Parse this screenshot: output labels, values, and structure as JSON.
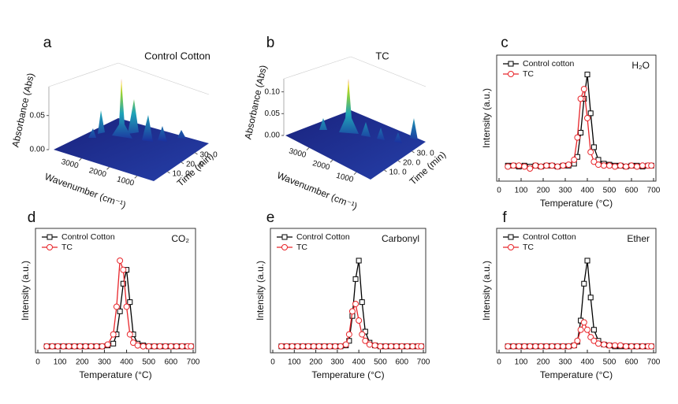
{
  "chart_data": [
    {
      "type": "surface3d",
      "panel": "a",
      "title": "Control Cotton",
      "xlabel": "Wavenumber (cm⁻¹)",
      "ylabel": "Time (min)",
      "zlabel": "Absorbance (Abs)",
      "xlim": [
        4000,
        400
      ],
      "xticks": [
        3000,
        2000,
        1000
      ],
      "ylim": [
        0,
        40
      ],
      "yticks": [
        {
          "value": 10,
          "label": "10. 0"
        },
        {
          "value": 20,
          "label": "20. 0"
        },
        {
          "value": 30,
          "label": "30. 0"
        }
      ],
      "zlim": [
        0,
        0.09
      ],
      "zticks": [
        {
          "value": 0,
          "label": "0.00"
        },
        0.05
      ]
    },
    {
      "type": "surface3d",
      "panel": "b",
      "title": "TC",
      "xlabel": "Wavenumber (cm⁻¹)",
      "ylabel": "Time (min)",
      "zlabel": "Absorbance (Abs)",
      "xlim": [
        4000,
        400
      ],
      "xticks": [
        3000,
        2000,
        1000
      ],
      "ylim": [
        0,
        40
      ],
      "yticks": [
        {
          "value": 10,
          "label": "10. 0"
        },
        {
          "value": 20,
          "label": "20. 0"
        },
        {
          "value": 30,
          "label": "30. 0"
        }
      ],
      "zlim": [
        0,
        0.13
      ],
      "zticks": [
        {
          "value": 0,
          "label": "0.00"
        },
        0.05,
        {
          "value": 0.1,
          "label": "0.10"
        }
      ]
    },
    {
      "type": "line",
      "panel": "c",
      "annotation": "H₂O",
      "xlabel": "Temperature (°C)",
      "ylabel": "Intensity (a.u.)",
      "xlim": [
        0,
        700
      ],
      "xticks": [
        0,
        100,
        200,
        300,
        400,
        500,
        600,
        700
      ],
      "ylim": [
        -0.1,
        1.2
      ],
      "x": [
        40,
        65,
        90,
        115,
        140,
        165,
        190,
        215,
        240,
        265,
        290,
        315,
        340,
        355,
        370,
        385,
        400,
        415,
        430,
        450,
        475,
        500,
        525,
        550,
        575,
        600,
        625,
        650,
        675,
        690
      ],
      "series": [
        {
          "name": "Control cotton",
          "color": "#000000",
          "marker": "square",
          "values": [
            0.06,
            0.06,
            0.05,
            0.06,
            0.05,
            0.06,
            0.05,
            0.06,
            0.06,
            0.05,
            0.06,
            0.06,
            0.08,
            0.15,
            0.4,
            0.75,
            1.0,
            0.6,
            0.25,
            0.12,
            0.08,
            0.07,
            0.06,
            0.06,
            0.05,
            0.06,
            0.06,
            0.05,
            0.06,
            0.06
          ]
        },
        {
          "name": "TC",
          "color": "#e8262b",
          "marker": "circle",
          "values": [
            0.05,
            0.06,
            0.06,
            0.05,
            0.03,
            0.06,
            0.05,
            0.06,
            0.06,
            0.05,
            0.06,
            0.07,
            0.12,
            0.35,
            0.75,
            0.85,
            0.55,
            0.2,
            0.1,
            0.07,
            0.06,
            0.06,
            0.05,
            0.06,
            0.05,
            0.06,
            0.05,
            0.06,
            0.06,
            0.06
          ]
        }
      ]
    },
    {
      "type": "line",
      "panel": "d",
      "annotation": "CO₂",
      "xlabel": "Temperature (°C)",
      "ylabel": "Intensity (a.u.)",
      "xlim": [
        0,
        700
      ],
      "xticks": [
        0,
        100,
        200,
        300,
        400,
        500,
        600,
        700
      ],
      "ylim": [
        -0.05,
        1.3
      ],
      "x": [
        40,
        65,
        90,
        115,
        140,
        165,
        190,
        215,
        240,
        265,
        290,
        315,
        340,
        355,
        370,
        385,
        400,
        415,
        430,
        450,
        475,
        500,
        525,
        550,
        575,
        600,
        625,
        650,
        675,
        690
      ],
      "series": [
        {
          "name": "Control Cotton",
          "color": "#000000",
          "marker": "square",
          "values": [
            0.02,
            0.02,
            0.02,
            0.02,
            0.02,
            0.02,
            0.02,
            0.02,
            0.02,
            0.02,
            0.02,
            0.03,
            0.05,
            0.15,
            0.4,
            0.7,
            0.85,
            0.5,
            0.15,
            0.05,
            0.03,
            0.02,
            0.02,
            0.02,
            0.02,
            0.02,
            0.02,
            0.02,
            0.02,
            0.02
          ]
        },
        {
          "name": "TC",
          "color": "#e8262b",
          "marker": "circle",
          "values": [
            0.02,
            0.02,
            0.02,
            0.02,
            0.02,
            0.02,
            0.02,
            0.02,
            0.02,
            0.02,
            0.02,
            0.04,
            0.15,
            0.45,
            0.95,
            0.85,
            0.45,
            0.15,
            0.06,
            0.03,
            0.02,
            0.02,
            0.02,
            0.02,
            0.02,
            0.02,
            0.02,
            0.02,
            0.02,
            0.02
          ]
        }
      ]
    },
    {
      "type": "line",
      "panel": "e",
      "annotation": "Carbonyl",
      "xlabel": "Temperature (°C)",
      "ylabel": "Intensity (a.u.)",
      "xlim": [
        0,
        700
      ],
      "xticks": [
        0,
        100,
        200,
        300,
        400,
        500,
        600,
        700
      ],
      "ylim": [
        -0.05,
        1.3
      ],
      "x": [
        40,
        65,
        90,
        115,
        140,
        165,
        190,
        215,
        240,
        265,
        290,
        315,
        340,
        355,
        370,
        385,
        400,
        415,
        430,
        450,
        475,
        500,
        525,
        550,
        575,
        600,
        625,
        650,
        675,
        690
      ],
      "series": [
        {
          "name": "Control Cotton",
          "color": "#000000",
          "marker": "square",
          "values": [
            0.02,
            0.02,
            0.02,
            0.02,
            0.02,
            0.02,
            0.02,
            0.02,
            0.02,
            0.02,
            0.02,
            0.02,
            0.03,
            0.08,
            0.35,
            0.75,
            0.95,
            0.5,
            0.18,
            0.06,
            0.03,
            0.02,
            0.02,
            0.02,
            0.02,
            0.02,
            0.02,
            0.02,
            0.02,
            0.02
          ]
        },
        {
          "name": "TC",
          "color": "#e8262b",
          "marker": "circle",
          "values": [
            0.02,
            0.02,
            0.02,
            0.02,
            0.02,
            0.02,
            0.02,
            0.02,
            0.02,
            0.02,
            0.02,
            0.02,
            0.04,
            0.15,
            0.4,
            0.48,
            0.3,
            0.15,
            0.08,
            0.04,
            0.03,
            0.02,
            0.02,
            0.02,
            0.02,
            0.02,
            0.02,
            0.02,
            0.02,
            0.02
          ]
        }
      ]
    },
    {
      "type": "line",
      "panel": "f",
      "annotation": "Ether",
      "xlabel": "Temperature (°C)",
      "ylabel": "Intensity (a.u.)",
      "xlim": [
        0,
        700
      ],
      "xticks": [
        0,
        100,
        200,
        300,
        400,
        500,
        600,
        700
      ],
      "ylim": [
        -0.05,
        1.3
      ],
      "x": [
        40,
        65,
        90,
        115,
        140,
        165,
        190,
        215,
        240,
        265,
        290,
        315,
        340,
        355,
        370,
        385,
        400,
        415,
        430,
        450,
        475,
        500,
        525,
        550,
        575,
        600,
        625,
        650,
        675,
        690
      ],
      "series": [
        {
          "name": "Control Cotton",
          "color": "#000000",
          "marker": "square",
          "values": [
            0.02,
            0.02,
            0.02,
            0.02,
            0.02,
            0.02,
            0.02,
            0.02,
            0.02,
            0.02,
            0.02,
            0.02,
            0.03,
            0.07,
            0.3,
            0.7,
            0.95,
            0.55,
            0.2,
            0.08,
            0.04,
            0.03,
            0.02,
            0.02,
            0.02,
            0.02,
            0.02,
            0.02,
            0.02,
            0.02
          ]
        },
        {
          "name": "TC",
          "color": "#e8262b",
          "marker": "circle",
          "values": [
            0.02,
            0.02,
            0.02,
            0.02,
            0.02,
            0.02,
            0.02,
            0.02,
            0.02,
            0.02,
            0.02,
            0.02,
            0.03,
            0.08,
            0.2,
            0.28,
            0.2,
            0.12,
            0.08,
            0.05,
            0.04,
            0.03,
            0.03,
            0.03,
            0.02,
            0.02,
            0.02,
            0.02,
            0.02,
            0.02
          ]
        }
      ]
    }
  ]
}
